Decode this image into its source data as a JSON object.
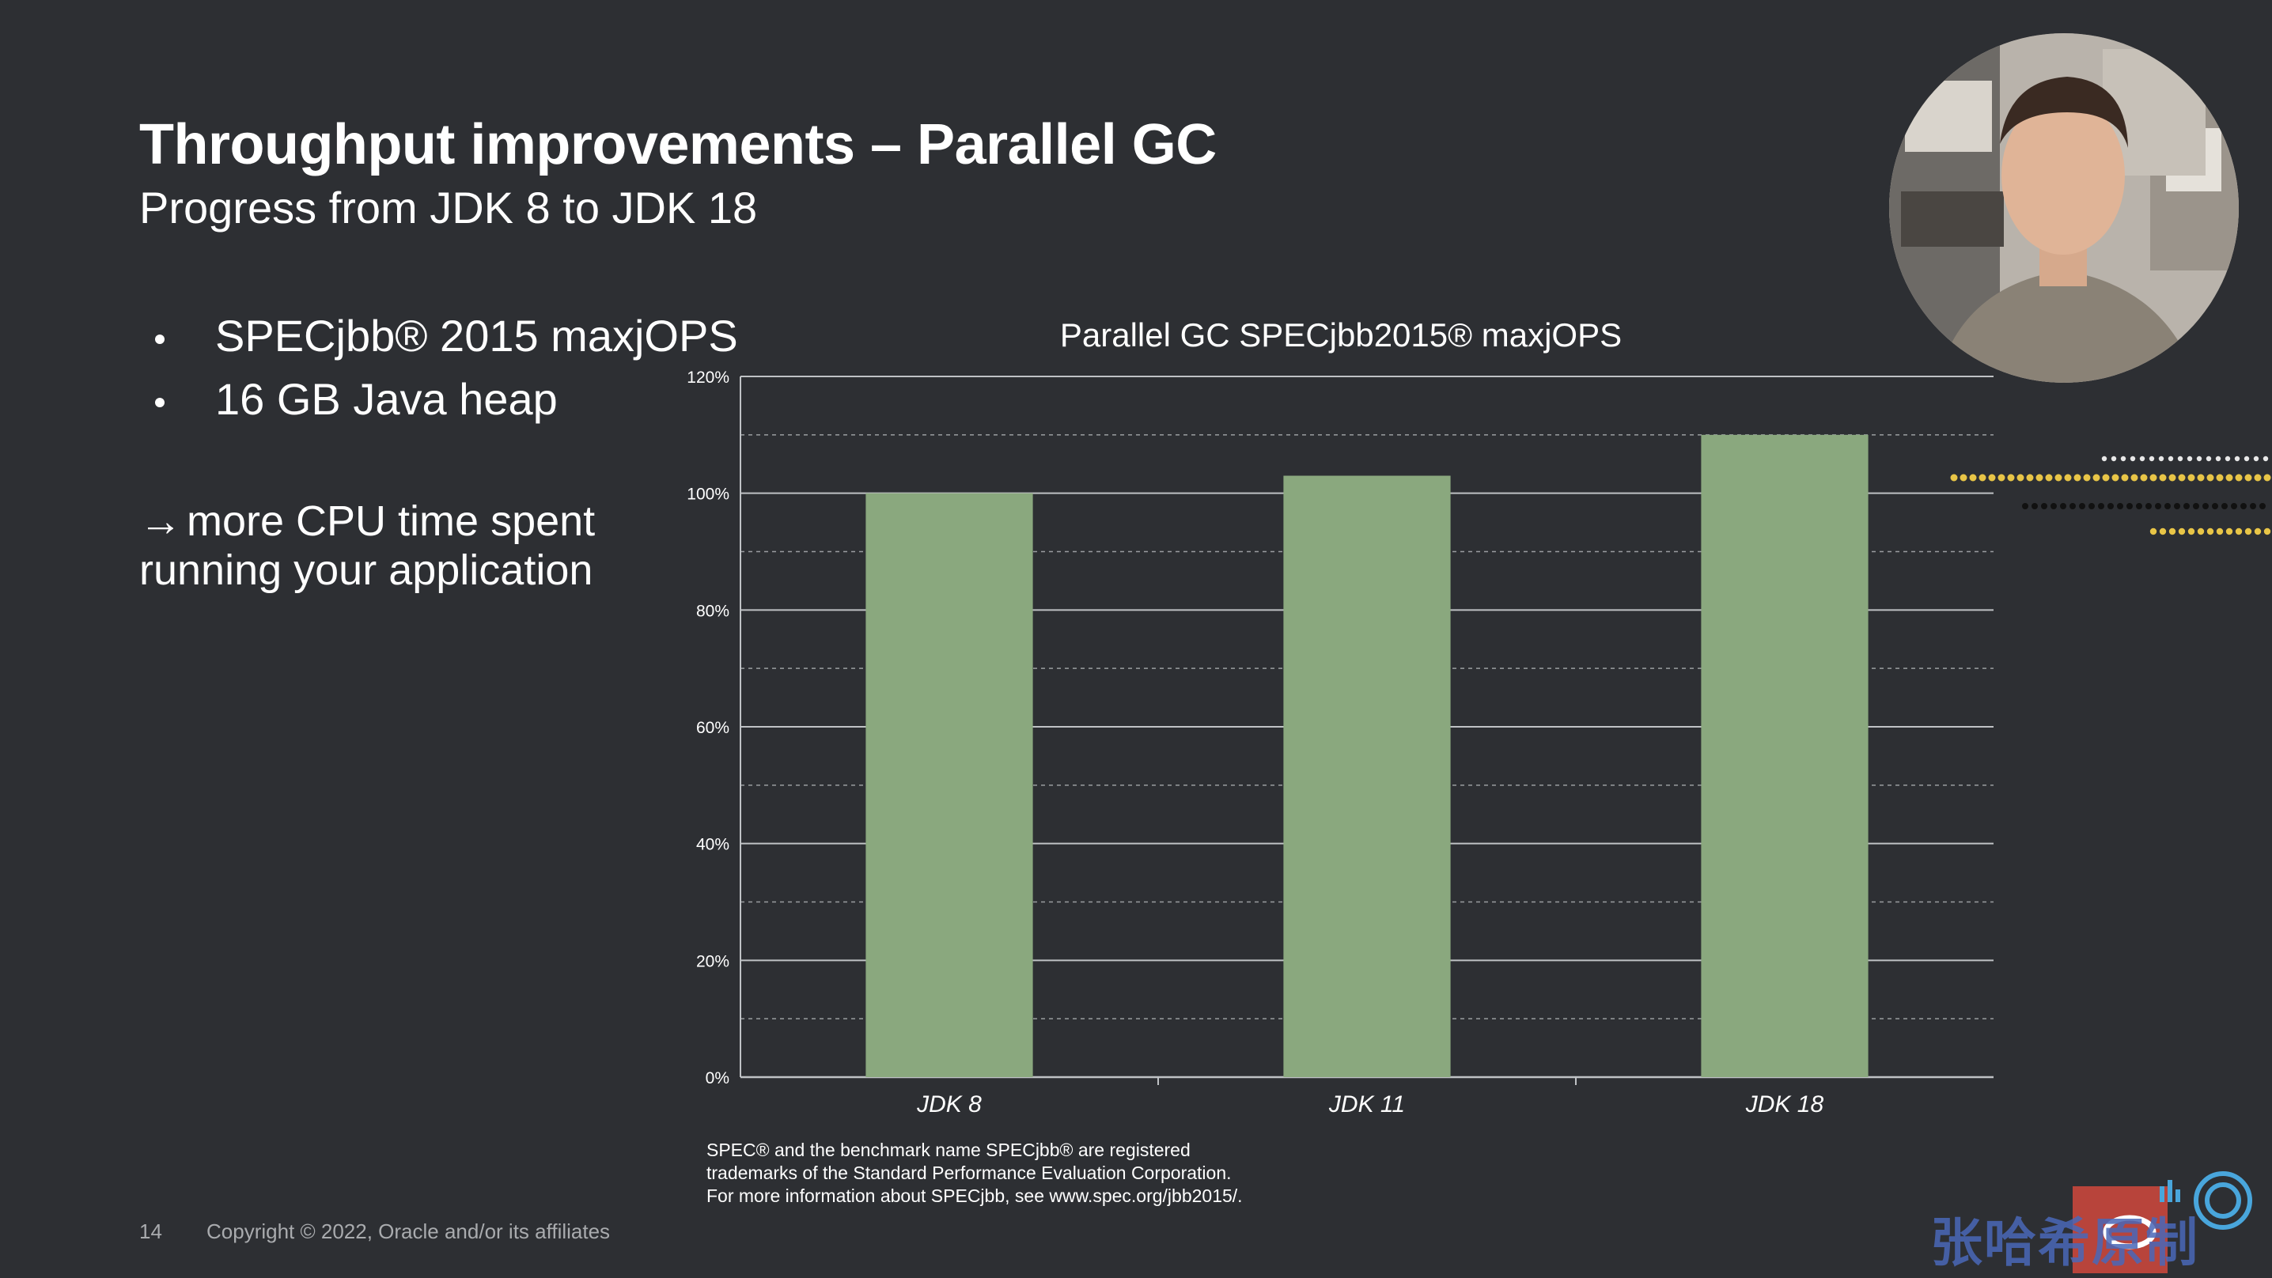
{
  "slide": {
    "title": "Throughput improvements – Parallel GC",
    "subtitle": "Progress from JDK 8 to JDK 18",
    "bullets": [
      "SPECjbb® 2015 maxjOPS",
      "16 GB Java heap"
    ],
    "arrow_glyph": "→",
    "arrow_line1": "more CPU time spent",
    "arrow_line2": "running your application",
    "footnote_line1": "SPEC® and the benchmark name SPECjbb® are registered",
    "footnote_line2": "trademarks of the Standard Performance Evaluation Corporation.",
    "footnote_line3": "For more information about SPECjbb, see www.spec.org/jbb2015/.",
    "page_number": "14",
    "copyright": "Copyright © 2022, Oracle and/or its affiliates"
  },
  "watermark": {
    "text": "张哈希原制"
  },
  "colors": {
    "background": "#2d2f33",
    "bar": "#8aa87e",
    "gridline": "#bfc2c5",
    "dot_yellow": "#e8c547",
    "dot_black": "#111111",
    "dot_white": "#e8e8e8"
  },
  "chart_data": {
    "type": "bar",
    "title": "Parallel GC SPECjbb2015® maxjOPS",
    "categories": [
      "JDK 8",
      "JDK 11",
      "JDK 18"
    ],
    "values": [
      100,
      103,
      110
    ],
    "ylim": [
      0,
      120
    ],
    "yticks": [
      "0%",
      "20%",
      "40%",
      "60%",
      "80%",
      "100%",
      "120%"
    ],
    "grid": true,
    "xlabel": "",
    "ylabel": ""
  }
}
